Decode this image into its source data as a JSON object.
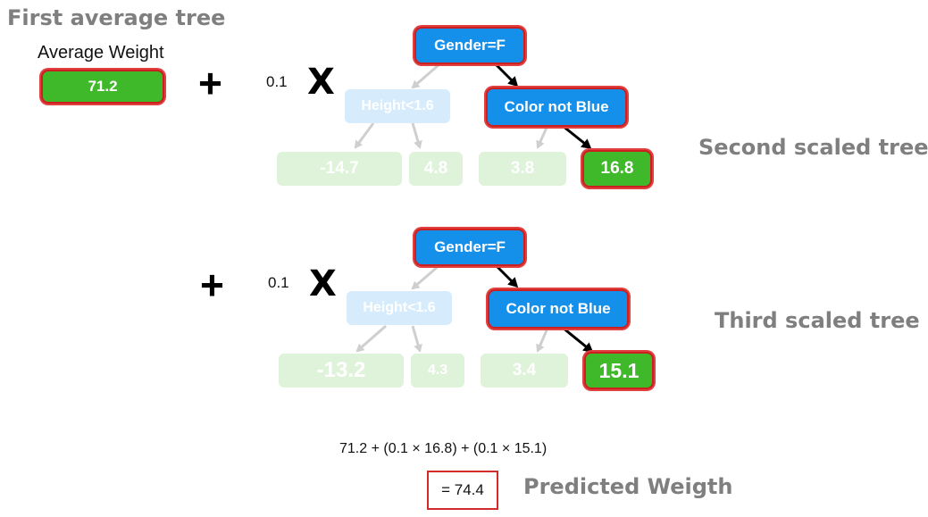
{
  "first_tree": {
    "title": "First average tree",
    "label": "Average Weight",
    "value": "71.2"
  },
  "operators": {
    "plus": "+",
    "times": "X",
    "learning_rate": "0.1"
  },
  "second_tree": {
    "title": "Second scaled tree",
    "root": "Gender=F",
    "left_internal": "Height<1.6",
    "right_internal": "Color not Blue",
    "leaves": [
      "-14.7",
      "4.8",
      "3.8",
      "16.8"
    ]
  },
  "third_tree": {
    "title": "Third scaled tree",
    "root": "Gender=F",
    "left_internal": "Height<1.6",
    "right_internal": "Color not Blue",
    "leaves": [
      "-13.2",
      "4.3",
      "3.4",
      "15.1"
    ]
  },
  "prediction": {
    "formula": "71.2 + (0.1 × 16.8) + (0.1 × 15.1)",
    "result": "= 74.4",
    "label": "Predicted Weigth"
  },
  "colors": {
    "node_blue": "#1590ea",
    "leaf_green": "#3fb92a",
    "highlight_red": "#cc1f1f",
    "title_gray": "#7f7f7f"
  }
}
